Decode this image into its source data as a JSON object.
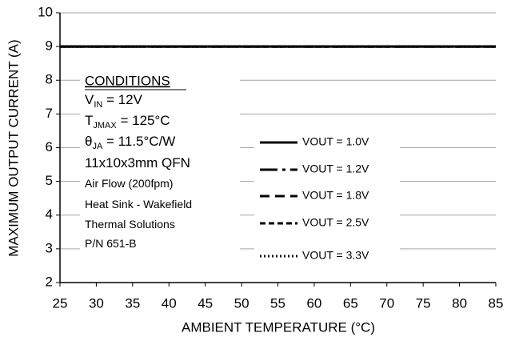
{
  "chart_data": {
    "type": "line",
    "xlabel": "AMBIENT TEMPERATURE (°C)",
    "ylabel": "MAXIMUM OUTPUT  CURRENT (A)",
    "xlim": [
      25,
      85
    ],
    "xticks": [
      25,
      30,
      35,
      40,
      45,
      50,
      55,
      60,
      65,
      70,
      75,
      80,
      85
    ],
    "ylim": [
      2,
      10
    ],
    "yticks": [
      2,
      3,
      4,
      5,
      6,
      7,
      8,
      9,
      10
    ],
    "grid": true,
    "x": [
      25,
      85
    ],
    "series": [
      {
        "name": "VOUT = 1.0V",
        "color": "#000000",
        "dash": "solid",
        "values": [
          9,
          9
        ]
      },
      {
        "name": "VOUT = 1.2V",
        "color": "#000000",
        "dash": "dash-dot",
        "values": [
          9,
          9
        ]
      },
      {
        "name": "VOUT = 1.8V",
        "color": "#000000",
        "dash": "dash",
        "values": [
          9,
          9
        ]
      },
      {
        "name": "VOUT = 2.5V",
        "color": "#000000",
        "dash": "short-dash",
        "values": [
          9,
          9
        ]
      },
      {
        "name": "VOUT = 3.3V",
        "color": "#000000",
        "dash": "dot",
        "values": [
          9,
          9
        ]
      }
    ],
    "conditions": {
      "title": "CONDITIONS",
      "lines": [
        [
          "V",
          "IN",
          " = 12V"
        ],
        [
          "T",
          "JMAX",
          " = 125°C"
        ],
        [
          "θ",
          "JA",
          " = 11.5°C/W"
        ],
        [
          "11x10x3mm QFN"
        ],
        [
          "Air Flow (200fpm)"
        ],
        [
          "Heat Sink - Wakefield"
        ],
        [
          "Thermal Solutions"
        ],
        [
          "P/N 651-B"
        ]
      ]
    }
  }
}
